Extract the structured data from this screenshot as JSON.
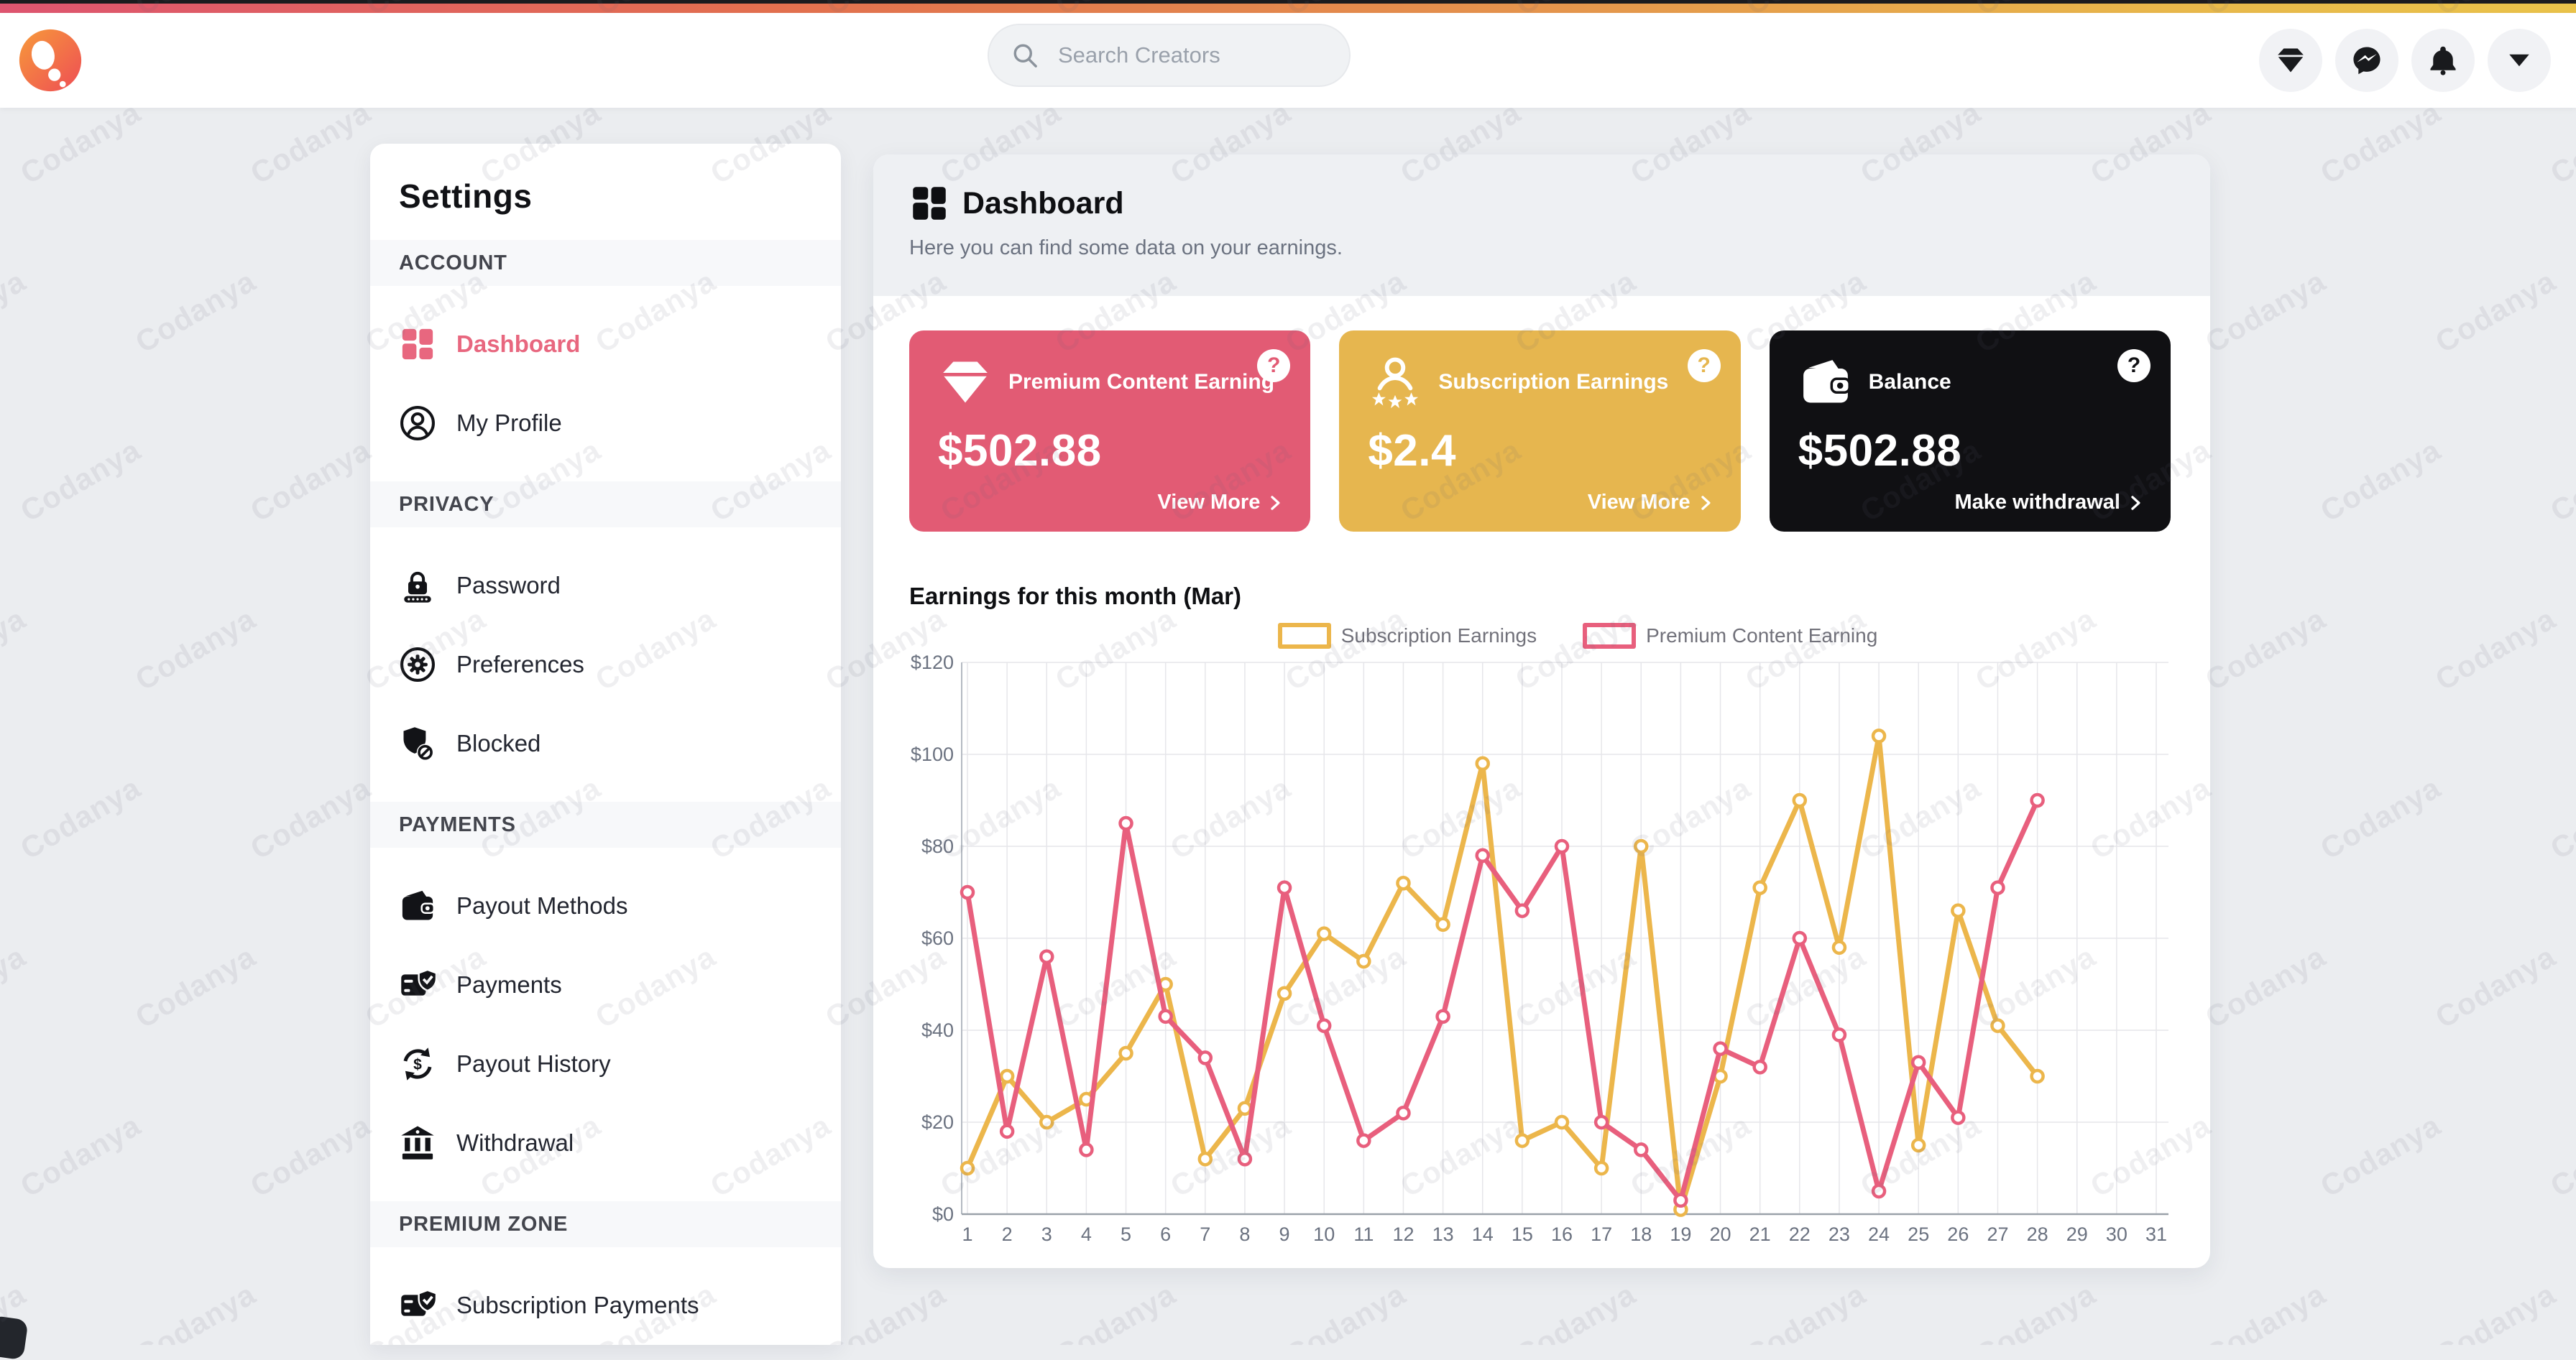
{
  "watermark": {
    "text": "Codanya"
  },
  "topbar": {
    "search": {
      "placeholder": "Search Creators"
    },
    "icons": [
      {
        "name": "premium",
        "icon": "gem"
      },
      {
        "name": "messages",
        "icon": "messenger"
      },
      {
        "name": "notifications",
        "icon": "bell"
      },
      {
        "name": "account-menu",
        "icon": "caret-down"
      }
    ]
  },
  "sidebar": {
    "title": "Settings",
    "sections": [
      {
        "label": "ACCOUNT",
        "items": [
          {
            "label": "Dashboard",
            "icon": "grid",
            "active": true
          },
          {
            "label": "My Profile",
            "icon": "user-circle",
            "active": false
          }
        ]
      },
      {
        "label": "PRIVACY",
        "items": [
          {
            "label": "Password",
            "icon": "lock",
            "active": false
          },
          {
            "label": "Preferences",
            "icon": "gear",
            "active": false
          },
          {
            "label": "Blocked",
            "icon": "shield-block",
            "active": false
          }
        ]
      },
      {
        "label": "PAYMENTS",
        "items": [
          {
            "label": "Payout Methods",
            "icon": "wallet",
            "active": false
          },
          {
            "label": "Payments",
            "icon": "card-shield",
            "active": false
          },
          {
            "label": "Payout History",
            "icon": "payout-cycle",
            "active": false
          },
          {
            "label": "Withdrawal",
            "icon": "bank",
            "active": false
          }
        ]
      },
      {
        "label": "PREMIUM ZONE",
        "items": [
          {
            "label": "Subscription Payments",
            "icon": "card-shield",
            "active": false
          }
        ]
      }
    ]
  },
  "main": {
    "header": {
      "title": "Dashboard",
      "subtitle": "Here you can find some data on your earnings."
    },
    "help_glyph": "?",
    "cards": [
      {
        "title": "Premium Content Earning",
        "amount": "$502.88",
        "action": "View More",
        "icon": "gem",
        "color": "#e25b74"
      },
      {
        "title": "Subscription Earnings",
        "amount": "$2.4",
        "action": "View More",
        "icon": "subscribers",
        "color": "#e6b64f"
      },
      {
        "title": "Balance",
        "amount": "$502.88",
        "action": "Make withdrawal",
        "icon": "wallet",
        "color": "#101013"
      }
    ],
    "chart_title": "Earnings for this month (Mar)"
  },
  "chart_data": {
    "type": "line",
    "title": "Earnings for this month (Mar)",
    "x": [
      1,
      2,
      3,
      4,
      5,
      6,
      7,
      8,
      9,
      10,
      11,
      12,
      13,
      14,
      15,
      16,
      17,
      18,
      19,
      20,
      21,
      22,
      23,
      24,
      25,
      26,
      27,
      28,
      29,
      30,
      31
    ],
    "xlim": [
      1,
      31
    ],
    "ylim": [
      0,
      120
    ],
    "yticks": [
      0,
      20,
      40,
      60,
      80,
      100,
      120
    ],
    "ytick_prefix": "$",
    "grid": true,
    "legend_position": "top",
    "series": [
      {
        "name": "Subscription Earnings",
        "color": "#ecb64b",
        "values": [
          10,
          30,
          20,
          25,
          35,
          50,
          12,
          23,
          48,
          61,
          55,
          72,
          63,
          98,
          16,
          20,
          10,
          80,
          1,
          30,
          71,
          90,
          58,
          104,
          15,
          66,
          41,
          30
        ]
      },
      {
        "name": "Premium Content Earning",
        "color": "#e85f7d",
        "values": [
          70,
          18,
          56,
          14,
          85,
          43,
          34,
          12,
          71,
          41,
          16,
          22,
          43,
          78,
          66,
          80,
          20,
          14,
          3,
          36,
          32,
          60,
          39,
          5,
          33,
          21,
          71,
          90
        ]
      }
    ]
  }
}
